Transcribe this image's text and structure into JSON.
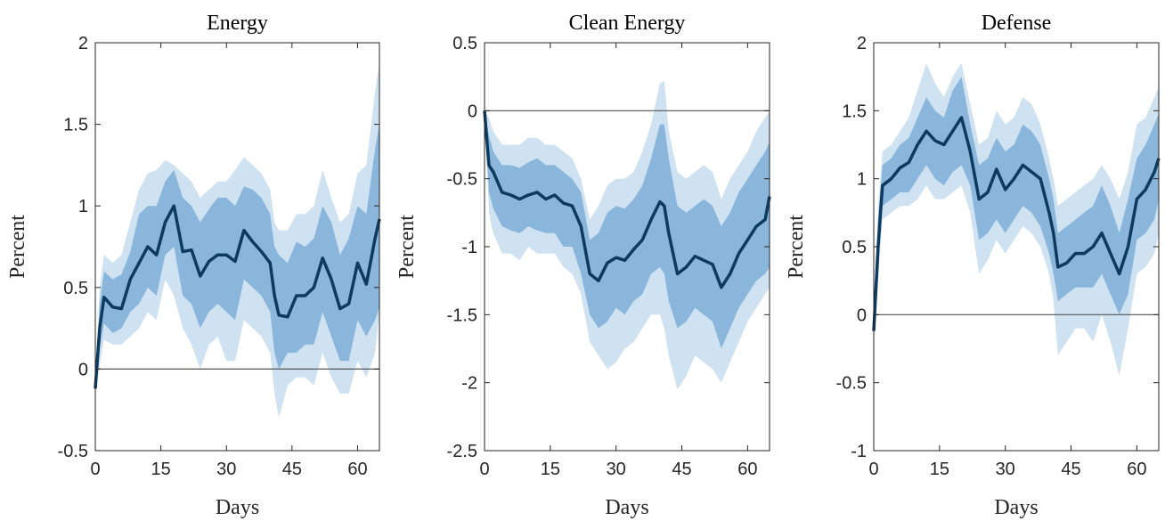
{
  "colors": {
    "band90": "#cfe2f1",
    "band68": "#8ab6dc",
    "line": "#0d3a5f",
    "zero": "#555555",
    "axis": "#262626"
  },
  "chart_data": [
    {
      "type": "line",
      "title": "Energy",
      "xlabel": "Days",
      "ylabel": "Percent",
      "xlim": [
        0,
        65
      ],
      "ylim": [
        -0.5,
        2
      ],
      "xticks": [
        0,
        15,
        30,
        45,
        60
      ],
      "yticks": [
        -0.5,
        0,
        0.5,
        1,
        1.5,
        2
      ],
      "ytick_labels": [
        "-0.5",
        "0",
        "0.5",
        "1",
        "1.5",
        "2"
      ],
      "x": [
        0,
        1,
        2,
        4,
        6,
        8,
        10,
        12,
        14,
        16,
        18,
        20,
        22,
        24,
        26,
        28,
        30,
        32,
        34,
        36,
        38,
        40,
        41,
        42,
        44,
        46,
        48,
        50,
        52,
        54,
        56,
        58,
        60,
        62,
        64,
        65
      ],
      "mean": [
        -0.12,
        0.25,
        0.44,
        0.38,
        0.37,
        0.55,
        0.65,
        0.75,
        0.7,
        0.9,
        1.0,
        0.72,
        0.73,
        0.57,
        0.66,
        0.7,
        0.7,
        0.66,
        0.85,
        0.78,
        0.72,
        0.65,
        0.45,
        0.33,
        0.32,
        0.45,
        0.45,
        0.5,
        0.68,
        0.55,
        0.37,
        0.4,
        0.65,
        0.52,
        0.8,
        0.92
      ],
      "hi68": [
        -0.12,
        0.4,
        0.6,
        0.55,
        0.58,
        0.72,
        0.95,
        1.0,
        1.0,
        1.15,
        1.22,
        1.05,
        1.0,
        0.9,
        0.98,
        1.05,
        1.05,
        1.0,
        1.12,
        1.1,
        1.05,
        0.95,
        0.75,
        0.7,
        0.65,
        0.78,
        0.75,
        0.8,
        1.0,
        0.9,
        0.7,
        0.8,
        1.0,
        0.95,
        1.35,
        1.5
      ],
      "lo68": [
        -0.12,
        0.12,
        0.28,
        0.22,
        0.25,
        0.35,
        0.4,
        0.5,
        0.45,
        0.7,
        0.75,
        0.45,
        0.4,
        0.25,
        0.35,
        0.4,
        0.35,
        0.3,
        0.55,
        0.5,
        0.45,
        0.35,
        0.1,
        0.0,
        0.1,
        0.1,
        0.15,
        0.15,
        0.35,
        0.2,
        0.05,
        0.05,
        0.3,
        0.2,
        0.3,
        0.38
      ],
      "hi90": [
        -0.12,
        0.5,
        0.7,
        0.65,
        0.7,
        0.9,
        1.1,
        1.2,
        1.22,
        1.28,
        1.25,
        1.2,
        1.15,
        1.05,
        1.1,
        1.15,
        1.15,
        1.22,
        1.3,
        1.25,
        1.2,
        1.1,
        0.9,
        0.85,
        0.85,
        0.95,
        0.95,
        1.0,
        1.22,
        1.05,
        0.9,
        0.95,
        1.2,
        1.25,
        1.7,
        1.88
      ],
      "lo90": [
        -0.12,
        0.02,
        0.18,
        0.15,
        0.15,
        0.2,
        0.25,
        0.35,
        0.3,
        0.55,
        0.45,
        0.25,
        0.15,
        0.0,
        0.15,
        0.2,
        0.05,
        0.05,
        0.3,
        0.25,
        0.2,
        0.1,
        -0.15,
        -0.3,
        -0.1,
        -0.05,
        -0.05,
        -0.1,
        0.1,
        -0.05,
        -0.15,
        -0.15,
        0.05,
        -0.05,
        0.1,
        0.35
      ]
    },
    {
      "type": "line",
      "title": "Clean Energy",
      "xlabel": "Days",
      "ylabel": "Percent",
      "xlim": [
        0,
        65
      ],
      "ylim": [
        -2.5,
        0.5
      ],
      "xticks": [
        0,
        15,
        30,
        45,
        60
      ],
      "yticks": [
        -2.5,
        -2,
        -1.5,
        -1,
        -0.5,
        0,
        0.5
      ],
      "ytick_labels": [
        "-2.5",
        "-2",
        "-1.5",
        "-1",
        "-0.5",
        "0",
        "0.5"
      ],
      "x": [
        0,
        1,
        2,
        4,
        6,
        8,
        10,
        12,
        14,
        16,
        18,
        20,
        22,
        24,
        26,
        28,
        30,
        32,
        34,
        36,
        38,
        40,
        41,
        42,
        44,
        46,
        48,
        50,
        52,
        54,
        56,
        58,
        60,
        62,
        64,
        65
      ],
      "mean": [
        0,
        -0.4,
        -0.45,
        -0.6,
        -0.62,
        -0.65,
        -0.62,
        -0.6,
        -0.65,
        -0.62,
        -0.68,
        -0.7,
        -0.85,
        -1.2,
        -1.25,
        -1.12,
        -1.08,
        -1.1,
        -1.02,
        -0.95,
        -0.8,
        -0.67,
        -0.7,
        -0.9,
        -1.2,
        -1.15,
        -1.07,
        -1.1,
        -1.13,
        -1.3,
        -1.2,
        -1.05,
        -0.95,
        -0.85,
        -0.8,
        -0.63
      ],
      "hi68": [
        0,
        -0.18,
        -0.3,
        -0.4,
        -0.4,
        -0.42,
        -0.38,
        -0.35,
        -0.4,
        -0.4,
        -0.45,
        -0.5,
        -0.6,
        -0.95,
        -0.9,
        -0.75,
        -0.7,
        -0.72,
        -0.65,
        -0.55,
        -0.35,
        -0.1,
        -0.1,
        -0.35,
        -0.7,
        -0.75,
        -0.7,
        -0.65,
        -0.7,
        -0.85,
        -0.75,
        -0.6,
        -0.5,
        -0.4,
        -0.3,
        -0.23
      ],
      "lo68": [
        0,
        -0.6,
        -0.72,
        -0.85,
        -0.88,
        -0.9,
        -0.85,
        -0.88,
        -0.9,
        -0.9,
        -1.0,
        -1.0,
        -1.2,
        -1.5,
        -1.6,
        -1.55,
        -1.45,
        -1.5,
        -1.4,
        -1.35,
        -1.2,
        -1.15,
        -1.2,
        -1.4,
        -1.6,
        -1.55,
        -1.45,
        -1.5,
        -1.55,
        -1.75,
        -1.6,
        -1.45,
        -1.35,
        -1.25,
        -1.2,
        -1.15
      ],
      "hi90": [
        0,
        -0.05,
        -0.15,
        -0.25,
        -0.25,
        -0.25,
        -0.2,
        -0.2,
        -0.25,
        -0.25,
        -0.3,
        -0.35,
        -0.5,
        -0.8,
        -0.7,
        -0.55,
        -0.5,
        -0.5,
        -0.45,
        -0.3,
        -0.1,
        0.2,
        0.22,
        -0.15,
        -0.45,
        -0.5,
        -0.45,
        -0.4,
        -0.45,
        -0.65,
        -0.5,
        -0.4,
        -0.3,
        -0.15,
        -0.05,
        0
      ],
      "lo90": [
        0,
        -0.75,
        -0.9,
        -1.05,
        -1.05,
        -1.1,
        -1.0,
        -1.05,
        -1.05,
        -1.05,
        -1.15,
        -1.2,
        -1.35,
        -1.7,
        -1.8,
        -1.9,
        -1.85,
        -1.75,
        -1.7,
        -1.6,
        -1.5,
        -1.5,
        -1.6,
        -1.8,
        -2.05,
        -1.95,
        -1.8,
        -1.85,
        -1.9,
        -2.0,
        -1.85,
        -1.7,
        -1.55,
        -1.45,
        -1.35,
        -1.3
      ]
    },
    {
      "type": "line",
      "title": "Defense",
      "xlabel": "Days",
      "ylabel": "Percent",
      "xlim": [
        0,
        65
      ],
      "ylim": [
        -1,
        2
      ],
      "xticks": [
        0,
        15,
        30,
        45,
        60
      ],
      "yticks": [
        -1,
        -0.5,
        0,
        0.5,
        1,
        1.5,
        2
      ],
      "ytick_labels": [
        "-1",
        "-0.5",
        "0",
        "0.5",
        "1",
        "1.5",
        "2"
      ],
      "x": [
        0,
        1,
        2,
        4,
        6,
        8,
        10,
        12,
        14,
        16,
        18,
        20,
        22,
        24,
        26,
        28,
        30,
        32,
        34,
        36,
        38,
        40,
        41,
        42,
        44,
        46,
        48,
        50,
        52,
        54,
        56,
        58,
        60,
        62,
        64,
        65
      ],
      "mean": [
        -0.12,
        0.5,
        0.95,
        1.0,
        1.08,
        1.12,
        1.25,
        1.35,
        1.28,
        1.25,
        1.35,
        1.45,
        1.2,
        0.85,
        0.9,
        1.07,
        0.92,
        1.0,
        1.1,
        1.05,
        1.0,
        0.75,
        0.6,
        0.35,
        0.38,
        0.45,
        0.45,
        0.5,
        0.6,
        0.45,
        0.3,
        0.5,
        0.85,
        0.92,
        1.05,
        1.15
      ],
      "hi68": [
        -0.12,
        0.7,
        1.1,
        1.15,
        1.25,
        1.3,
        1.45,
        1.6,
        1.5,
        1.45,
        1.65,
        1.75,
        1.4,
        1.1,
        1.15,
        1.3,
        1.2,
        1.25,
        1.4,
        1.35,
        1.25,
        1.0,
        0.85,
        0.6,
        0.65,
        0.7,
        0.75,
        0.8,
        0.95,
        0.8,
        0.6,
        0.85,
        1.15,
        1.25,
        1.4,
        1.48
      ],
      "lo68": [
        -0.12,
        0.35,
        0.8,
        0.85,
        0.9,
        0.9,
        1.0,
        1.1,
        1.0,
        0.95,
        1.05,
        1.1,
        0.95,
        0.55,
        0.6,
        0.7,
        0.6,
        0.7,
        0.8,
        0.75,
        0.65,
        0.45,
        0.3,
        0.1,
        0.15,
        0.2,
        0.2,
        0.2,
        0.3,
        0.15,
        0.0,
        0.15,
        0.55,
        0.6,
        0.7,
        0.85
      ],
      "hi90": [
        -0.12,
        0.8,
        1.2,
        1.25,
        1.35,
        1.45,
        1.65,
        1.85,
        1.7,
        1.6,
        1.75,
        1.85,
        1.55,
        1.25,
        1.3,
        1.5,
        1.4,
        1.45,
        1.6,
        1.55,
        1.4,
        1.15,
        1.0,
        0.8,
        0.85,
        0.9,
        0.95,
        1.0,
        1.1,
        1.0,
        0.85,
        1.05,
        1.4,
        1.45,
        1.6,
        1.68
      ],
      "lo90": [
        -0.12,
        0.25,
        0.7,
        0.75,
        0.8,
        0.8,
        0.85,
        0.95,
        0.85,
        0.85,
        0.9,
        0.95,
        0.75,
        0.3,
        0.4,
        0.55,
        0.45,
        0.55,
        0.65,
        0.6,
        0.5,
        0.3,
        0.1,
        -0.3,
        -0.2,
        -0.1,
        -0.1,
        -0.2,
        0.0,
        -0.2,
        -0.45,
        -0.1,
        0.3,
        0.35,
        0.45,
        0.6
      ]
    }
  ]
}
